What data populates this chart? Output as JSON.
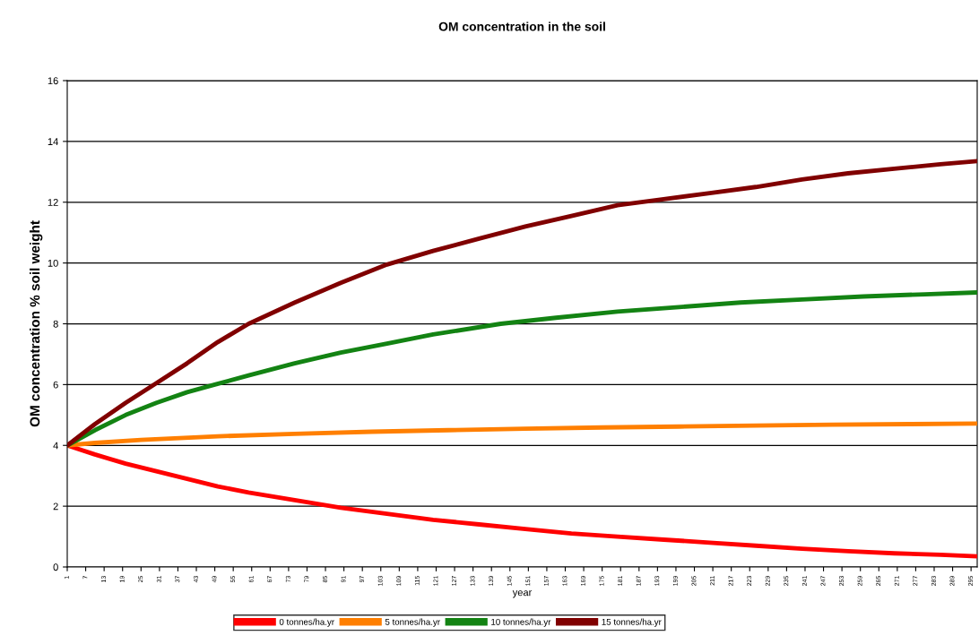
{
  "chart_data": {
    "type": "line",
    "title": "OM concentration in the soil",
    "xlabel": "year",
    "ylabel": "OM concentration % soil weight",
    "xlim": [
      1,
      297
    ],
    "xticks": [
      1,
      7,
      13,
      19,
      25,
      31,
      37,
      43,
      49,
      55,
      61,
      67,
      73,
      79,
      85,
      91,
      97,
      103,
      109,
      115,
      121,
      127,
      133,
      139,
      145,
      151,
      157,
      163,
      169,
      175,
      181,
      187,
      193,
      199,
      205,
      211,
      217,
      223,
      229,
      235,
      241,
      247,
      253,
      259,
      265,
      271,
      277,
      283,
      289,
      295
    ],
    "ylim": [
      0,
      16
    ],
    "yticks": [
      0,
      2,
      4,
      6,
      8,
      10,
      12,
      14,
      16
    ],
    "grid": "y",
    "legend": "bottom",
    "marker": "none",
    "line_style": "solid",
    "series": [
      {
        "name": "0 tonnes/ha.yr",
        "color": "#ff0000",
        "x": [
          1,
          10,
          20,
          30,
          40,
          50,
          60,
          75,
          90,
          105,
          120,
          135,
          150,
          165,
          180,
          195,
          210,
          225,
          240,
          255,
          270,
          285,
          297
        ],
        "values": [
          4,
          3.7,
          3.4,
          3.15,
          2.9,
          2.65,
          2.45,
          2.2,
          1.95,
          1.75,
          1.55,
          1.4,
          1.25,
          1.1,
          1.0,
          0.9,
          0.8,
          0.7,
          0.6,
          0.52,
          0.45,
          0.4,
          0.35
        ]
      },
      {
        "name": "5 tonnes/ha.yr",
        "color": "#ff7f00",
        "x": [
          1,
          10,
          25,
          50,
          75,
          100,
          125,
          150,
          175,
          200,
          225,
          250,
          275,
          297
        ],
        "values": [
          4,
          4.08,
          4.18,
          4.3,
          4.38,
          4.45,
          4.5,
          4.55,
          4.59,
          4.62,
          4.65,
          4.68,
          4.7,
          4.72
        ]
      },
      {
        "name": "10 tonnes/ha.yr",
        "color": "#138313",
        "x": [
          1,
          10,
          20,
          30,
          40,
          49,
          60,
          75,
          90,
          105,
          120,
          142,
          160,
          180,
          200,
          220,
          240,
          260,
          280,
          297
        ],
        "values": [
          4,
          4.5,
          5.0,
          5.4,
          5.75,
          6.0,
          6.3,
          6.7,
          7.05,
          7.35,
          7.65,
          8.0,
          8.2,
          8.4,
          8.55,
          8.7,
          8.8,
          8.9,
          8.97,
          9.03
        ]
      },
      {
        "name": "15 tonnes/ha.yr",
        "color": "#800000",
        "x": [
          1,
          10,
          20,
          30,
          40,
          50,
          60,
          75,
          90,
          105,
          120,
          135,
          150,
          165,
          180,
          195,
          210,
          225,
          240,
          255,
          270,
          285,
          297
        ],
        "values": [
          4,
          4.7,
          5.4,
          6.05,
          6.7,
          7.4,
          8.0,
          8.7,
          9.35,
          9.95,
          10.4,
          10.8,
          11.2,
          11.55,
          11.9,
          12.1,
          12.3,
          12.5,
          12.75,
          12.95,
          13.1,
          13.25,
          13.35
        ]
      }
    ]
  }
}
